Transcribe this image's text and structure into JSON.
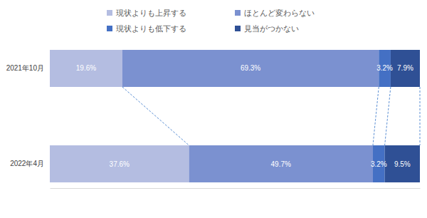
{
  "chart_data": {
    "type": "bar",
    "orientation": "horizontal",
    "stacked": true,
    "data_labels": true,
    "legend": "top",
    "tick_labels": "y",
    "categories": [
      "2021年10月",
      "2022年4月"
    ],
    "xlim": [
      0,
      100
    ],
    "series": [
      {
        "name": "現状よりも上昇する",
        "color": "#b4bde1",
        "values": [
          19.6,
          37.6
        ],
        "value_labels": [
          "19.6%",
          "37.6%"
        ]
      },
      {
        "name": "ほとんど変わらない",
        "color": "#7b91d0",
        "values": [
          69.3,
          49.7
        ],
        "value_labels": [
          "69.3%",
          "49.7%"
        ]
      },
      {
        "name": "現状よりも低下する",
        "color": "#4470c4",
        "values": [
          3.2,
          3.2
        ],
        "value_labels": [
          "3.2%",
          "3.2%"
        ]
      },
      {
        "name": "見当がつかない",
        "color": "#2f5095",
        "values": [
          7.9,
          9.5
        ],
        "value_labels": [
          "7.9%",
          "9.5%"
        ]
      }
    ]
  }
}
